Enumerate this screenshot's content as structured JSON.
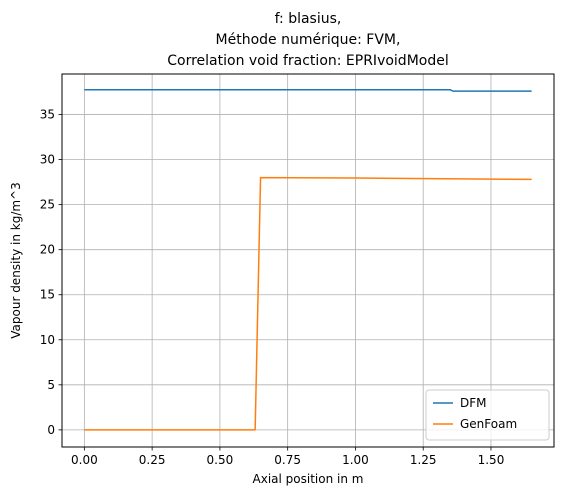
{
  "chart_data": {
    "type": "line",
    "title_lines": [
      "f: blasius,",
      "Méthode numérique: FVM,",
      "Correlation void fraction: EPRIvoidModel"
    ],
    "xlabel": "Axial position in m",
    "ylabel": "Vapour density in kg/m^3",
    "xlim": [
      -0.0825,
      1.7325
    ],
    "ylim": [
      -1.9,
      39.5
    ],
    "xticks": [
      0.0,
      0.25,
      0.5,
      0.75,
      1.0,
      1.25,
      1.5
    ],
    "xtick_labels": [
      "0.00",
      "0.25",
      "0.50",
      "0.75",
      "1.00",
      "1.25",
      "1.50"
    ],
    "yticks": [
      0,
      5,
      10,
      15,
      20,
      25,
      30,
      35
    ],
    "ytick_labels": [
      "0",
      "5",
      "10",
      "15",
      "20",
      "25",
      "30",
      "35"
    ],
    "grid": true,
    "legend_position": "bottom-right",
    "series": [
      {
        "name": "DFM",
        "color": "#1f77b4",
        "x": [
          0.0,
          1.35,
          1.36,
          1.65
        ],
        "y": [
          37.75,
          37.75,
          37.6,
          37.6
        ]
      },
      {
        "name": "GenFoam",
        "color": "#ff7f0e",
        "x": [
          0.0,
          0.63,
          0.65,
          1.0,
          1.65
        ],
        "y": [
          0.0,
          0.0,
          28.0,
          27.95,
          27.8
        ]
      }
    ]
  }
}
